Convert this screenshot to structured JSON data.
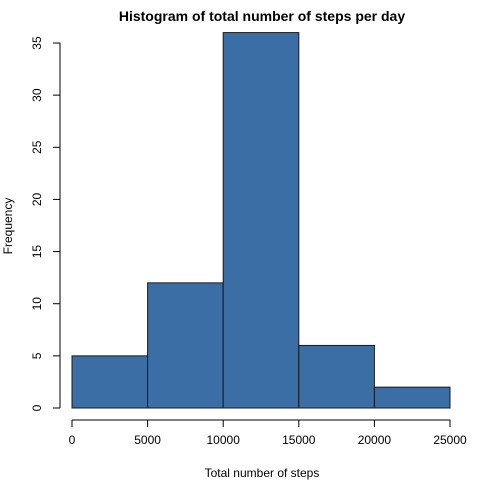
{
  "chart_data": {
    "type": "bar",
    "title": "Histogram of total number of steps per day",
    "xlabel": "Total number of steps",
    "ylabel": "Frequency",
    "bins": [
      {
        "from": 0,
        "to": 5000,
        "count": 5
      },
      {
        "from": 5000,
        "to": 10000,
        "count": 12
      },
      {
        "from": 10000,
        "to": 15000,
        "count": 36
      },
      {
        "from": 15000,
        "to": 20000,
        "count": 6
      },
      {
        "from": 20000,
        "to": 25000,
        "count": 2
      }
    ],
    "xlim": [
      0,
      25000
    ],
    "ylim": [
      0,
      35
    ],
    "xticks": [
      0,
      5000,
      10000,
      15000,
      20000,
      25000
    ],
    "xtick_labels": [
      "0",
      "5000",
      "10000",
      "15000",
      "20000",
      "25000"
    ],
    "yticks": [
      0,
      5,
      10,
      15,
      20,
      25,
      30,
      35
    ],
    "ytick_labels": [
      "0",
      "5",
      "10",
      "15",
      "20",
      "25",
      "30",
      "35"
    ],
    "bar_color": "#3a6ea5",
    "bar_border_color": "#1a1a1a",
    "grid": false,
    "legend": "none"
  }
}
